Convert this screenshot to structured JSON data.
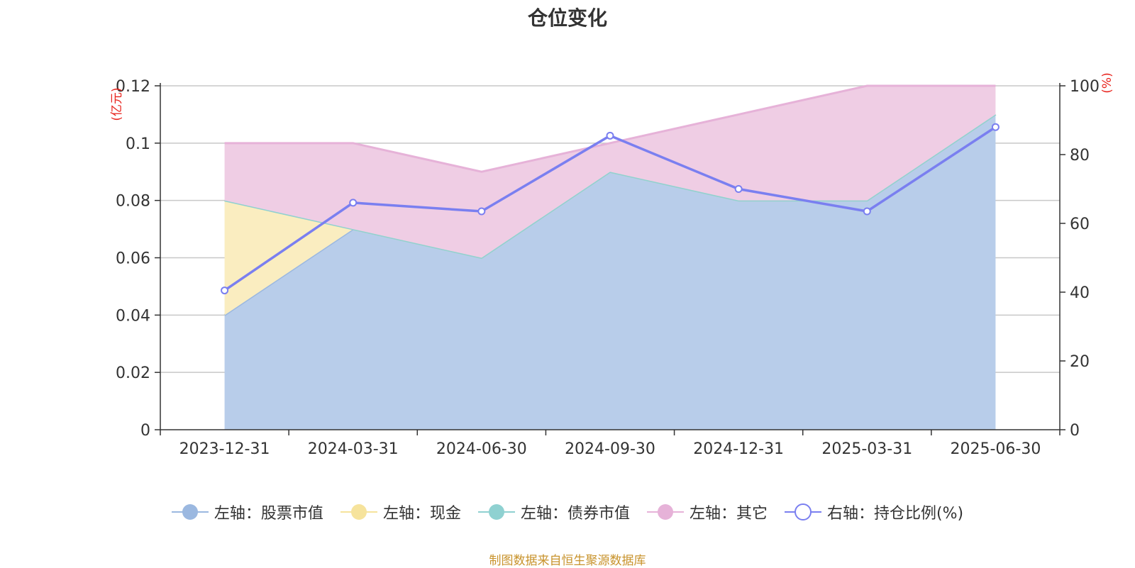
{
  "chart_data": {
    "type": "area",
    "title": "仓位变化",
    "categories": [
      "2023-12-31",
      "2024-03-31",
      "2024-06-30",
      "2024-09-30",
      "2024-12-31",
      "2025-03-31",
      "2025-06-30"
    ],
    "left_axis": {
      "unit_label": "(亿元)",
      "ylim": [
        0,
        0.12
      ],
      "ticks": [
        "0",
        "0.02",
        "0.04",
        "0.06",
        "0.08",
        "0.1",
        "0.12"
      ]
    },
    "right_axis": {
      "unit_label": "(%)",
      "ylim": [
        0,
        100
      ],
      "ticks": [
        "0",
        "20",
        "40",
        "60",
        "80",
        "100"
      ]
    },
    "series": [
      {
        "name": "左轴：股票市值",
        "axis": "left",
        "kind": "stacked-area",
        "color": "#9bb8e0",
        "fill": "#b8cdea",
        "values": [
          0.04,
          0.07,
          0.06,
          0.09,
          0.08,
          0.08,
          0.11
        ]
      },
      {
        "name": "左轴：现金",
        "axis": "left",
        "kind": "stacked-area",
        "color": "#f6e39c",
        "fill": "#faedc0",
        "values": [
          0.04,
          0.0,
          0.0,
          0.0,
          0.0,
          0.0,
          0.0
        ]
      },
      {
        "name": "左轴：债券市值",
        "axis": "left",
        "kind": "stacked-area",
        "color": "#8fd1d1",
        "fill": "#bfe6e6",
        "values": [
          0,
          0,
          0,
          0,
          0,
          0,
          0
        ]
      },
      {
        "name": "左轴：其它",
        "axis": "left",
        "kind": "stacked-area",
        "color": "#e6b2d8",
        "fill": "#efcde4",
        "values": [
          0.02,
          0.03,
          0.03,
          0.01,
          0.03,
          0.04,
          0.01
        ]
      },
      {
        "name": "右轴：持仓比例(%)",
        "axis": "right",
        "kind": "line",
        "color": "#7a7ff0",
        "values": [
          40.5,
          66,
          63.5,
          85.5,
          70,
          63.5,
          88
        ]
      }
    ],
    "grid": true,
    "legend_position": "bottom"
  },
  "footer": {
    "source": "制图数据来自恒生聚源数据库"
  }
}
